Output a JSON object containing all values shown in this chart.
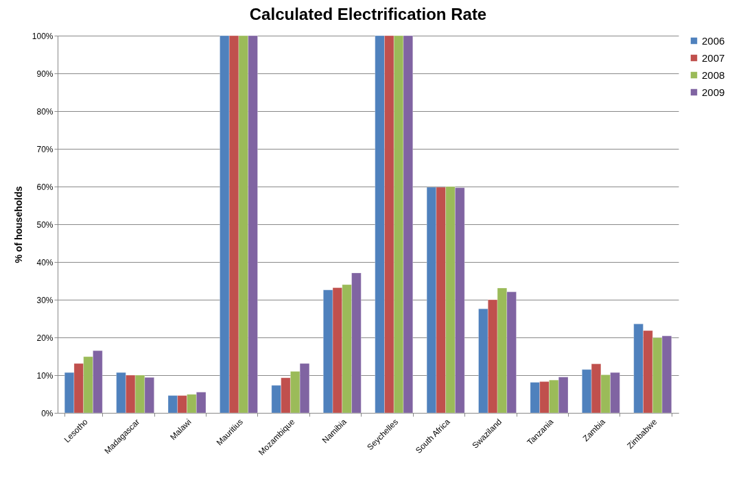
{
  "chart_data": {
    "type": "bar",
    "title": "Calculated Electrification Rate",
    "ylabel": "% of households",
    "categories": [
      "Lesotho",
      "Madagascar",
      "Malawi",
      "Mauritius",
      "Mozambique",
      "Namibia",
      "Seychelles",
      "South Africa",
      "Swaziland",
      "Tanzania",
      "Zambia",
      "Zimbabwe"
    ],
    "series": [
      {
        "name": "2006",
        "color": "#4f81bd",
        "values": [
          10.7,
          10.7,
          4.6,
          100,
          7.3,
          32.6,
          100,
          59.8,
          27.6,
          8.1,
          11.5,
          23.6
        ]
      },
      {
        "name": "2007",
        "color": "#c0504d",
        "values": [
          13.1,
          10.0,
          4.6,
          100,
          9.3,
          33.2,
          100,
          59.8,
          30.0,
          8.3,
          13.0,
          21.8
        ]
      },
      {
        "name": "2008",
        "color": "#9bbb59",
        "values": [
          14.9,
          10.0,
          4.9,
          100,
          11.0,
          34.0,
          100,
          60.0,
          33.1,
          8.7,
          10.1,
          19.9
        ]
      },
      {
        "name": "2009",
        "color": "#8064a2",
        "values": [
          16.5,
          9.4,
          5.5,
          100,
          13.1,
          37.1,
          100,
          59.7,
          32.1,
          9.5,
          10.7,
          20.4
        ]
      }
    ],
    "ylim": [
      0,
      100
    ],
    "yticks": [
      {
        "value": 0,
        "label": "0%"
      },
      {
        "value": 10,
        "label": "10%"
      },
      {
        "value": 20,
        "label": "20%"
      },
      {
        "value": 30,
        "label": "30%"
      },
      {
        "value": 40,
        "label": "40%"
      },
      {
        "value": 50,
        "label": "50%"
      },
      {
        "value": 60,
        "label": "60%"
      },
      {
        "value": 70,
        "label": "70%"
      },
      {
        "value": 80,
        "label": "80%"
      },
      {
        "value": 90,
        "label": "90%"
      },
      {
        "value": 100,
        "label": "100%"
      }
    ],
    "grid": "y",
    "legend": "right"
  }
}
